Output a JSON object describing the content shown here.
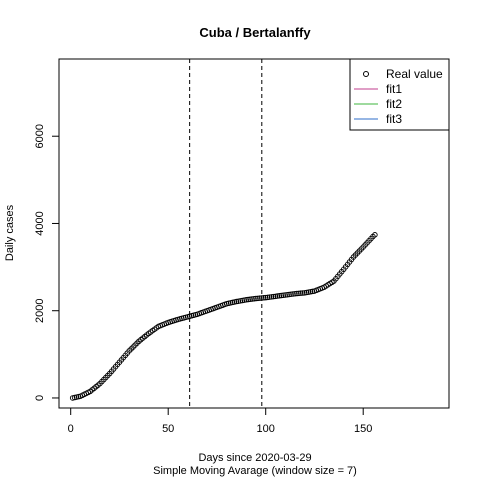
{
  "chart_data": {
    "type": "scatter",
    "title": "Cuba / Bertalanffy",
    "xlabel": "Days since 2020-03-29",
    "subtitle": "Simple Moving Avarage (window size = 7)",
    "ylabel": "Daily cases",
    "xlim": [
      -6,
      194
    ],
    "ylim": [
      -230,
      7770
    ],
    "xticks": [
      0,
      50,
      100,
      150
    ],
    "yticks": [
      0,
      2000,
      4000,
      6000
    ],
    "vlines": [
      61,
      98
    ],
    "grid": false,
    "legend_position": "top-right",
    "legend": [
      {
        "label": "Real value",
        "kind": "point",
        "color": "#000000"
      },
      {
        "label": "fit1",
        "kind": "line",
        "color": "#c03c8c"
      },
      {
        "label": "fit2",
        "kind": "line",
        "color": "#3cb43c"
      },
      {
        "label": "fit3",
        "kind": "line",
        "color": "#2c6cc8"
      }
    ],
    "series": [
      {
        "name": "Real value",
        "anchors": [
          [
            1,
            0
          ],
          [
            5,
            40
          ],
          [
            10,
            150
          ],
          [
            15,
            330
          ],
          [
            20,
            560
          ],
          [
            25,
            820
          ],
          [
            30,
            1080
          ],
          [
            35,
            1300
          ],
          [
            40,
            1480
          ],
          [
            45,
            1640
          ],
          [
            50,
            1730
          ],
          [
            55,
            1800
          ],
          [
            60,
            1860
          ],
          [
            65,
            1920
          ],
          [
            70,
            2000
          ],
          [
            75,
            2080
          ],
          [
            80,
            2160
          ],
          [
            85,
            2210
          ],
          [
            90,
            2250
          ],
          [
            95,
            2280
          ],
          [
            100,
            2300
          ],
          [
            105,
            2330
          ],
          [
            110,
            2360
          ],
          [
            115,
            2390
          ],
          [
            120,
            2410
          ],
          [
            125,
            2450
          ],
          [
            130,
            2540
          ],
          [
            135,
            2680
          ],
          [
            140,
            2950
          ],
          [
            145,
            3230
          ],
          [
            150,
            3460
          ],
          [
            155,
            3700
          ],
          [
            156,
            3740
          ]
        ]
      }
    ]
  }
}
